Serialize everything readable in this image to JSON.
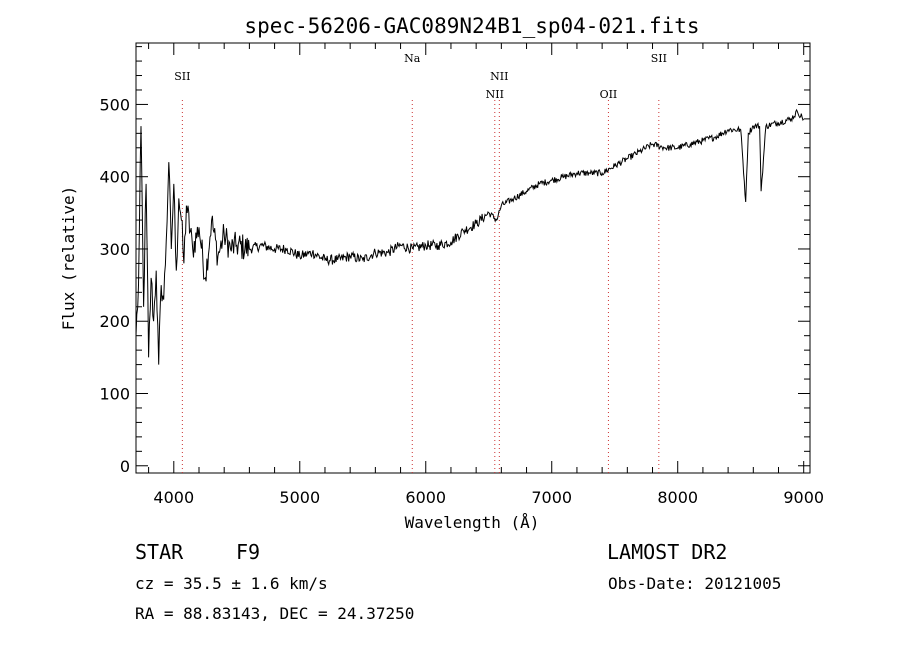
{
  "chart_data": {
    "type": "line",
    "title": "spec-56206-GAC089N24B1_sp04-021.fits",
    "xlabel": "Wavelength (Å)",
    "ylabel": "Flux (relative)",
    "xlim": [
      3700,
      9050
    ],
    "ylim": [
      -10,
      585
    ],
    "x_ticks": [
      4000,
      5000,
      6000,
      7000,
      8000,
      9000
    ],
    "y_ticks": [
      0,
      100,
      200,
      300,
      400,
      500
    ],
    "grid": false,
    "series": [
      {
        "x": [
          3700,
          3720,
          3740,
          3760,
          3780,
          3800,
          3820,
          3840,
          3860,
          3880,
          3900,
          3920,
          3940,
          3960,
          3980,
          4000,
          4020,
          4040,
          4060,
          4080,
          4100,
          4150,
          4200,
          4250,
          4300,
          4350,
          4400,
          4450,
          4500,
          4600,
          4700,
          4800,
          4900,
          5000,
          5100,
          5200,
          5300,
          5400,
          5500,
          5600,
          5700,
          5800,
          5900,
          6000,
          6100,
          6200,
          6300,
          6400,
          6500,
          6563,
          6600,
          6700,
          6800,
          6900,
          7000,
          7100,
          7200,
          7300,
          7400,
          7500,
          7600,
          7700,
          7800,
          7900,
          8000,
          8100,
          8200,
          8300,
          8400,
          8500,
          8540,
          8560,
          8600,
          8650,
          8662,
          8700,
          8800,
          8900,
          8950,
          9000
        ],
        "y": [
          180,
          250,
          470,
          220,
          390,
          150,
          260,
          200,
          270,
          140,
          250,
          230,
          310,
          420,
          300,
          390,
          270,
          370,
          340,
          280,
          360,
          300,
          330,
          260,
          340,
          290,
          320,
          300,
          305,
          300,
          305,
          300,
          300,
          290,
          295,
          285,
          285,
          290,
          285,
          295,
          295,
          305,
          300,
          305,
          305,
          310,
          325,
          335,
          350,
          340,
          360,
          370,
          380,
          390,
          395,
          400,
          405,
          405,
          405,
          415,
          425,
          435,
          445,
          440,
          440,
          445,
          450,
          455,
          465,
          465,
          365,
          460,
          470,
          470,
          380,
          470,
          475,
          480,
          490,
          480
        ]
      }
    ],
    "lines": [
      {
        "label": "SII",
        "x": 4068,
        "row": 1
      },
      {
        "label": "Na",
        "x": 5893,
        "row": 0
      },
      {
        "label": "NII",
        "x": 6548,
        "row": 2
      },
      {
        "label": "NII",
        "x": 6584,
        "row": 1
      },
      {
        "label": "OII",
        "x": 7450,
        "row": 2
      },
      {
        "label": "SII",
        "x": 7850,
        "row": 0
      }
    ]
  },
  "info": {
    "object_type": "STAR",
    "spectral_class": "F9",
    "survey": "LAMOST DR2",
    "redshift": "cz = 35.5 ± 1.6 km/s",
    "obs_date": "Obs-Date: 20121005",
    "coords": "RA =  88.83143, DEC =  24.37250"
  }
}
